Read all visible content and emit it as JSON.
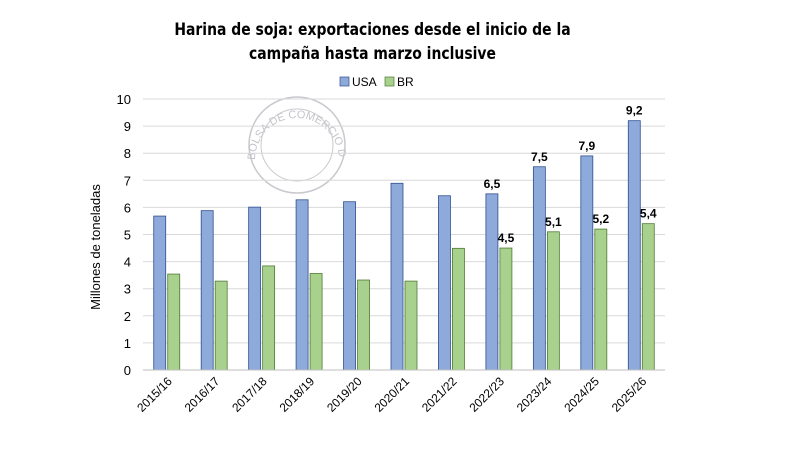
{
  "chart_data": {
    "type": "bar",
    "title": "Harina de soja: exportaciones desde el inicio de la campaña hasta marzo inclusive",
    "title_lines": [
      "Harina de soja: exportaciones desde el inicio de la",
      "campaña hasta marzo inclusive"
    ],
    "xlabel": "",
    "ylabel": "Millones de toneladas",
    "ylim": [
      0,
      10
    ],
    "yticks": [
      0,
      1,
      2,
      3,
      4,
      5,
      6,
      7,
      8,
      9,
      10
    ],
    "grid": true,
    "legend_placement": "top",
    "watermark": "BOLSA DE COMERCIO DE ROSARIO",
    "categories": [
      "2015/16",
      "2016/17",
      "2017/18",
      "2018/19",
      "2019/20",
      "2020/21",
      "2021/22",
      "2022/23",
      "2023/24",
      "2024/25",
      "2025/26"
    ],
    "series": [
      {
        "name": "USA",
        "color": "#8eaadb",
        "edge": "#2f4f8f",
        "values": [
          5.68,
          5.88,
          6.01,
          6.28,
          6.21,
          6.89,
          6.43,
          6.5,
          7.5,
          7.9,
          9.2
        ],
        "labels": [
          "",
          "",
          "",
          "",
          "",
          "",
          "",
          "6,5",
          "7,5",
          "7,9",
          "9,2"
        ]
      },
      {
        "name": "BR",
        "color": "#a9d18e",
        "edge": "#4e7a33",
        "values": [
          3.54,
          3.28,
          3.84,
          3.56,
          3.32,
          3.28,
          4.49,
          4.5,
          5.1,
          5.2,
          5.4
        ],
        "labels": [
          "",
          "",
          "",
          "",
          "",
          "",
          "",
          "4,5",
          "5,1",
          "5,2",
          "5,4"
        ]
      }
    ]
  }
}
